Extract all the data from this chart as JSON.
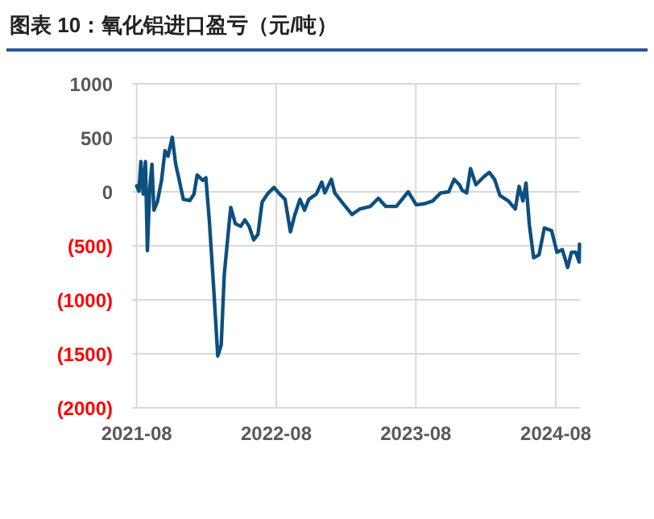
{
  "chart_data": {
    "type": "line",
    "title": "图表 10：氧化铝进口盈亏（元/吨）",
    "x": [
      "2021-08-01",
      "2021-08-07",
      "2021-08-12",
      "2021-08-18",
      "2021-08-24",
      "2021-08-29",
      "2021-09-04",
      "2021-09-10",
      "2021-09-15",
      "2021-09-24",
      "2021-10-05",
      "2021-10-14",
      "2021-10-22",
      "2021-11-02",
      "2021-11-11",
      "2021-11-19",
      "2021-12-01",
      "2021-12-18",
      "2021-12-29",
      "2022-01-06",
      "2022-01-21",
      "2022-01-29",
      "2022-02-07",
      "2022-02-18",
      "2022-03-01",
      "2022-03-10",
      "2022-03-18",
      "2022-03-30",
      "2022-04-04",
      "2022-04-16",
      "2022-04-30",
      "2022-05-11",
      "2022-05-22",
      "2022-06-03",
      "2022-06-14",
      "2022-06-25",
      "2022-07-09",
      "2022-07-26",
      "2022-08-10",
      "2022-08-24",
      "2022-09-07",
      "2022-09-18",
      "2022-10-02",
      "2022-10-14",
      "2022-10-25",
      "2022-11-14",
      "2022-11-28",
      "2022-12-06",
      "2022-12-23",
      "2023-01-01",
      "2023-01-23",
      "2023-02-15",
      "2023-03-07",
      "2023-04-04",
      "2023-04-25",
      "2023-05-14",
      "2023-06-11",
      "2023-07-12",
      "2023-08-02",
      "2023-08-24",
      "2023-09-14",
      "2023-10-05",
      "2023-10-26",
      "2023-11-09",
      "2023-11-23",
      "2023-11-30",
      "2023-12-12",
      "2023-12-22",
      "2024-01-05",
      "2024-01-26",
      "2024-02-09",
      "2024-02-23",
      "2024-03-08",
      "2024-03-30",
      "2024-04-17",
      "2024-04-27",
      "2024-05-07",
      "2024-05-15",
      "2024-05-24",
      "2024-06-04",
      "2024-06-18",
      "2024-07-02",
      "2024-07-21",
      "2024-08-04",
      "2024-08-18",
      "2024-09-01",
      "2024-09-11",
      "2024-09-22",
      "2024-10-01",
      "2024-10-02"
    ],
    "series": [
      {
        "color": "#0d4f7f",
        "values": [
          55,
          5,
          280,
          -20,
          280,
          -545,
          30,
          255,
          -170,
          -95,
          105,
          380,
          330,
          505,
          255,
          130,
          -70,
          -80,
          -20,
          155,
          105,
          130,
          -270,
          -870,
          -1520,
          -1420,
          -770,
          -320,
          -145,
          -295,
          -320,
          -260,
          -320,
          -445,
          -395,
          -95,
          -20,
          40,
          -20,
          -70,
          -370,
          -220,
          -70,
          -170,
          -70,
          -20,
          90,
          -10,
          115,
          -10,
          -110,
          -210,
          -160,
          -135,
          -60,
          -135,
          -135,
          0,
          -120,
          -110,
          -85,
          -10,
          0,
          115,
          65,
          15,
          -10,
          215,
          65,
          140,
          180,
          115,
          -35,
          -85,
          -160,
          50,
          -85,
          80,
          -310,
          -610,
          -585,
          -335,
          -360,
          -560,
          -535,
          -700,
          -560,
          -560,
          -650,
          -485
        ]
      }
    ],
    "xlim": [
      "2021-07-20",
      "2024-10-03"
    ],
    "xticks": [
      {
        "value": "2021-08-01",
        "label": "2021-08"
      },
      {
        "value": "2022-08-01",
        "label": "2022-08"
      },
      {
        "value": "2023-08-01",
        "label": "2023-08"
      },
      {
        "value": "2024-08-01",
        "label": "2024-08"
      }
    ],
    "ylim": [
      -2000,
      1000
    ],
    "yticks": [
      1000,
      500,
      0,
      {
        "value": -500,
        "label": "(500)"
      },
      {
        "value": -1000,
        "label": "(1000)"
      },
      {
        "value": -1500,
        "label": "(1500)"
      },
      {
        "value": -2000,
        "label": "(2000)"
      }
    ],
    "grid": true,
    "marker": "none",
    "line_style": "solid"
  }
}
